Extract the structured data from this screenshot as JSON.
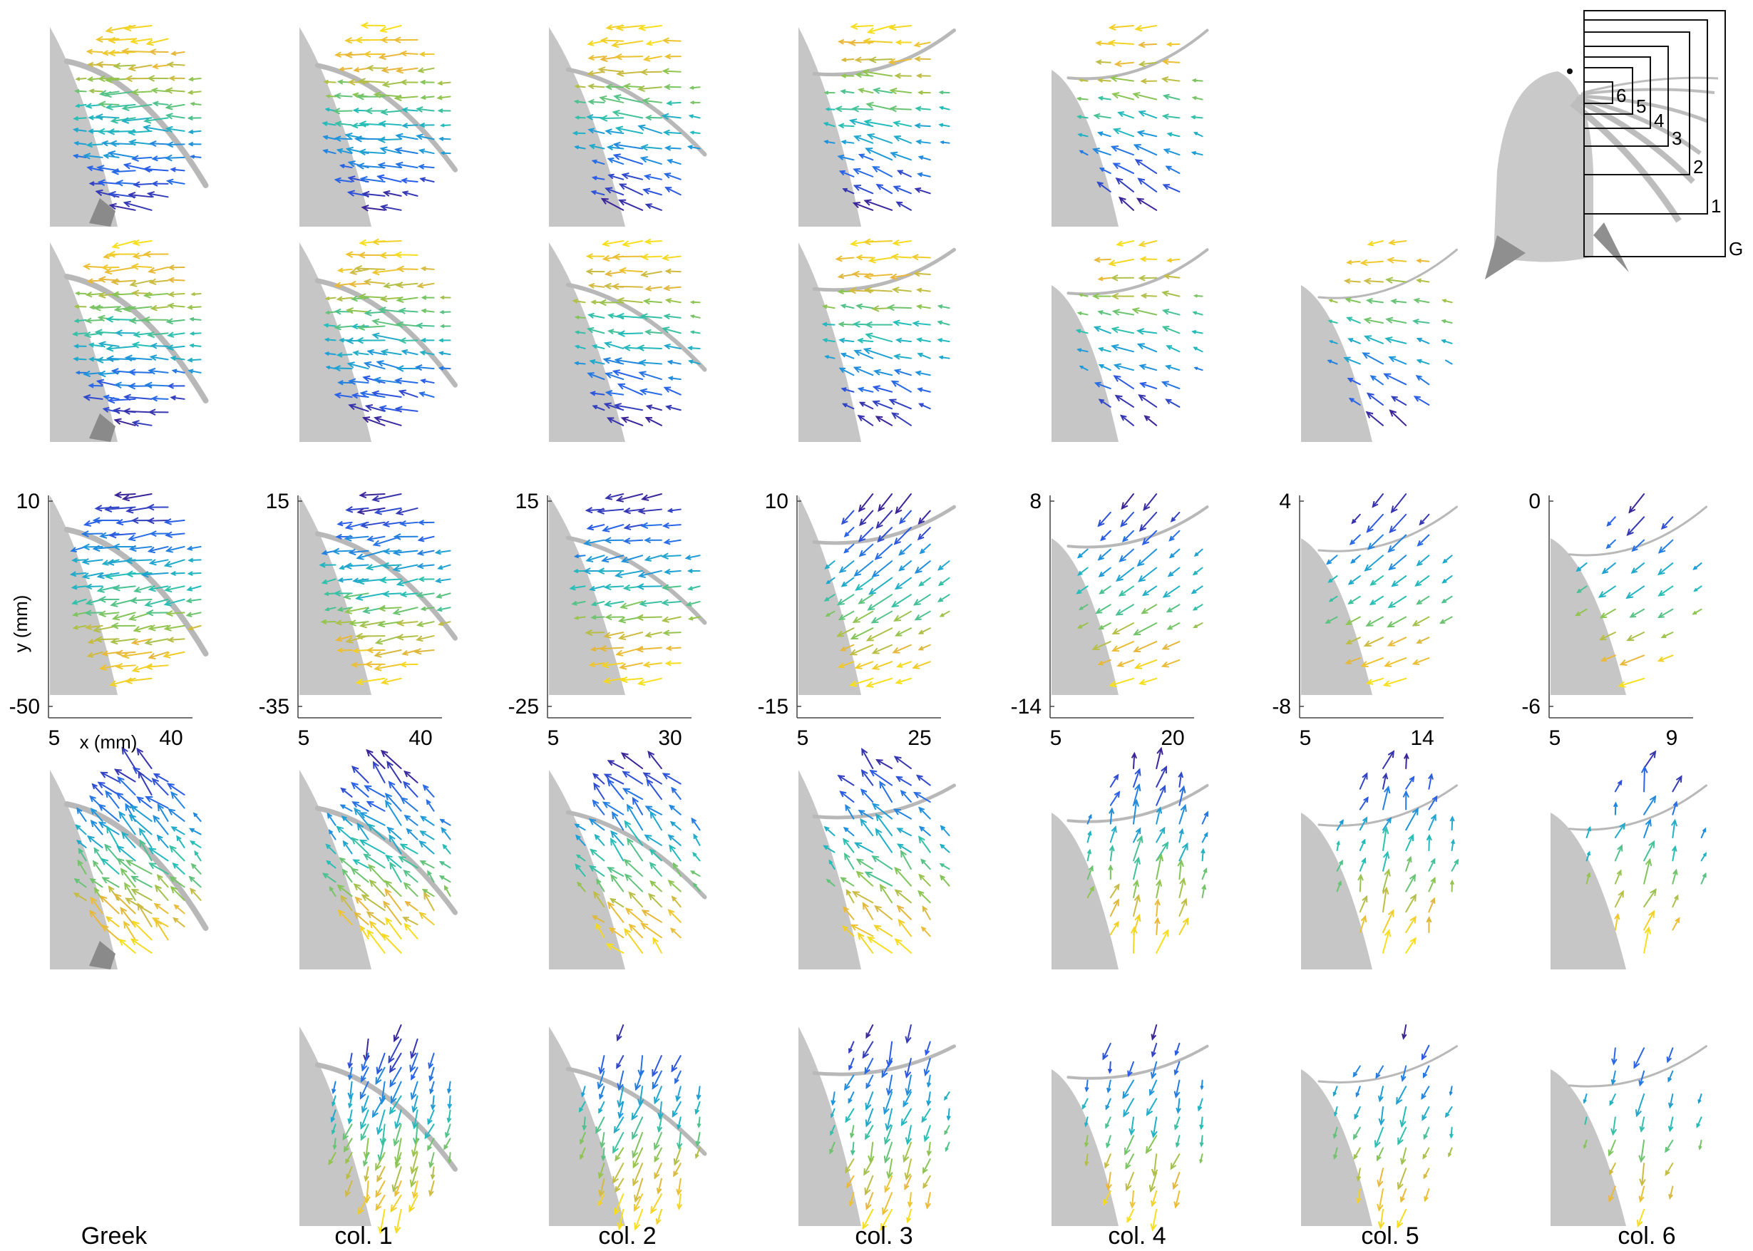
{
  "columns": [
    "Greek",
    "col. 1",
    "col. 2",
    "col. 3",
    "col. 4",
    "col. 5",
    "col. 6"
  ],
  "panel_rows": [
    [
      true,
      true,
      true,
      true,
      true,
      false,
      false
    ],
    [
      true,
      true,
      true,
      true,
      true,
      true,
      false
    ],
    [
      true,
      true,
      true,
      true,
      true,
      true,
      true
    ],
    [
      true,
      true,
      true,
      true,
      true,
      true,
      true
    ],
    [
      false,
      true,
      true,
      true,
      true,
      true,
      true
    ]
  ],
  "axis_row": {
    "ylabel": "y (mm)",
    "xlabel": "x (mm)",
    "panels": [
      {
        "y_top": "10",
        "y_bottom": "-50",
        "x_left": "5",
        "x_right": "40"
      },
      {
        "y_top": "15",
        "y_bottom": "-35",
        "x_left": "5",
        "x_right": "40"
      },
      {
        "y_top": "15",
        "y_bottom": "-25",
        "x_left": "5",
        "x_right": "30"
      },
      {
        "y_top": "10",
        "y_bottom": "-15",
        "x_left": "5",
        "x_right": "25"
      },
      {
        "y_top": "8",
        "y_bottom": "-14",
        "x_left": "5",
        "x_right": "20"
      },
      {
        "y_top": "4",
        "y_bottom": "-8",
        "x_left": "5",
        "x_right": "14"
      },
      {
        "y_top": "0",
        "y_bottom": "-6",
        "x_left": "5",
        "x_right": "9"
      }
    ]
  },
  "inset_labels": [
    "6",
    "5",
    "4",
    "3",
    "2",
    "1",
    "G"
  ],
  "colors": {
    "body": "#c6c6c6",
    "bristle": "#b8b8b8",
    "ramp": [
      "#3b2497",
      "#2a5ee8",
      "#1f98d9",
      "#25bfb7",
      "#8cc552",
      "#e8b73b",
      "#f7df1c"
    ]
  }
}
